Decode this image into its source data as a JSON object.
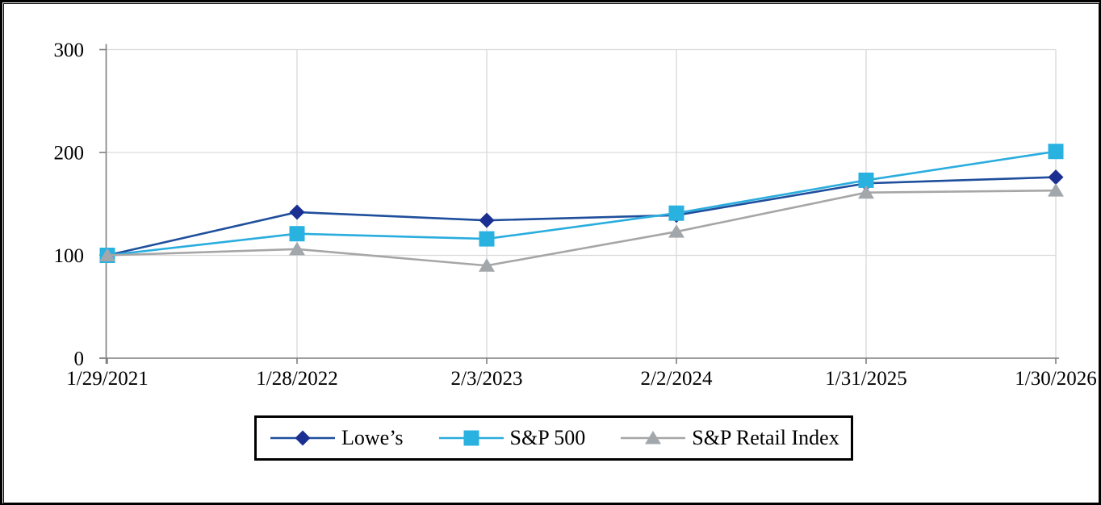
{
  "chart_data": {
    "type": "line",
    "title": "",
    "xlabel": "",
    "ylabel": "",
    "categories": [
      "1/29/2021",
      "1/28/2022",
      "2/3/2023",
      "2/2/2024",
      "1/31/2025",
      "1/30/2026"
    ],
    "series": [
      {
        "id": "lowes",
        "name": "Lowe’s",
        "marker": "diamond",
        "line_color": "#1F4E9C",
        "marker_color": "#1B2F92",
        "values": [
          100,
          142,
          134,
          139,
          170,
          176
        ]
      },
      {
        "id": "sp500",
        "name": "S&P 500",
        "marker": "square",
        "line_color": "#29ADDE",
        "marker_color": "#29B1E0",
        "values": [
          100,
          121,
          116,
          141,
          173,
          201
        ]
      },
      {
        "id": "retail",
        "name": "S&P Retail Index",
        "marker": "triangle",
        "line_color": "#A6A6A6",
        "marker_color": "#A2A7AC",
        "values": [
          100,
          106,
          90,
          123,
          161,
          163
        ]
      }
    ],
    "ylim": [
      0,
      300
    ],
    "yticks": [
      0,
      100,
      200,
      300
    ],
    "grid": true,
    "legend_position": "bottom",
    "colors": {
      "grid": "#D9D9D9",
      "axis": "#7F7F7F",
      "text": "#000000",
      "legend_border": "#000000",
      "frame_border": "#000000",
      "background": "#FFFFFF"
    }
  }
}
